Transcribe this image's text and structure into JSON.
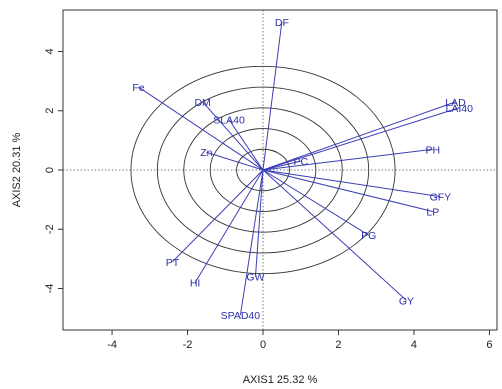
{
  "chart_data": {
    "type": "scatter",
    "subtype": "pca-biplot-loadings",
    "title": "",
    "xlabel": "AXIS1 25.32 %",
    "ylabel": "AXIS2 20.31 %",
    "xlim": [
      -5.3,
      6.2
    ],
    "ylim": [
      -5.4,
      5.4
    ],
    "x_ticks": [
      -4,
      -2,
      0,
      2,
      4,
      6
    ],
    "y_ticks": [
      -4,
      -2,
      0,
      2,
      4
    ],
    "x_tick_labels": [
      "-4",
      "-2",
      "0",
      "2",
      "4",
      "6"
    ],
    "y_tick_labels": [
      "-4",
      "-2",
      "0",
      "2",
      "4"
    ],
    "circles_radius": [
      0.7,
      1.4,
      2.1,
      2.8,
      3.5
    ],
    "reference_lines": "dotted at x=0 and y=0",
    "grid": false,
    "colors": {
      "vector": "#3b3fb5",
      "label": "#2b2fa8",
      "circle": "#333333",
      "reference": "#555555"
    },
    "vectors": [
      {
        "name": "DF",
        "x": 0.5,
        "y": 5.0
      },
      {
        "name": "Fe",
        "x": -3.3,
        "y": 2.8
      },
      {
        "name": "DM",
        "x": -1.6,
        "y": 2.3
      },
      {
        "name": "SLA40",
        "x": -0.9,
        "y": 1.7
      },
      {
        "name": "Zn",
        "x": -1.5,
        "y": 0.6
      },
      {
        "name": "PC",
        "x": 1.0,
        "y": 0.3
      },
      {
        "name": "LAD",
        "x": 5.1,
        "y": 2.3
      },
      {
        "name": "LAI40",
        "x": 5.2,
        "y": 2.1
      },
      {
        "name": "PH",
        "x": 4.5,
        "y": 0.7
      },
      {
        "name": "GFY",
        "x": 4.7,
        "y": -0.9
      },
      {
        "name": "LP",
        "x": 4.5,
        "y": -1.4
      },
      {
        "name": "PG",
        "x": 2.8,
        "y": -2.2
      },
      {
        "name": "GY",
        "x": 3.8,
        "y": -4.4
      },
      {
        "name": "PT",
        "x": -2.4,
        "y": -3.1
      },
      {
        "name": "HI",
        "x": -1.8,
        "y": -3.8
      },
      {
        "name": "GW",
        "x": -0.2,
        "y": -3.6
      },
      {
        "name": "SPAD40",
        "x": -0.6,
        "y": -4.9
      }
    ]
  }
}
